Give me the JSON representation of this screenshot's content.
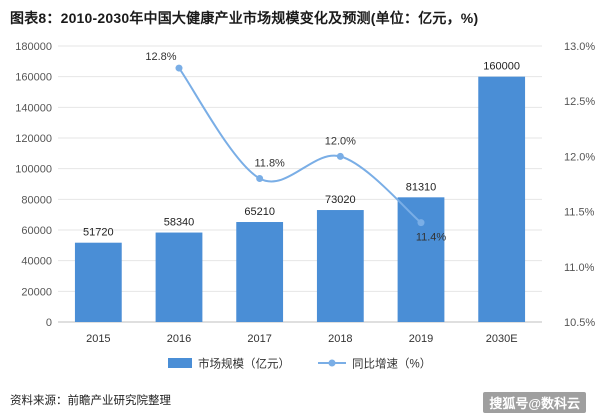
{
  "title": "图表8：2010-2030年中国大健康产业市场规模变化及预测(单位：亿元，%)",
  "source": "资料来源：前瞻产业研究院整理",
  "watermark": "搜狐号@数科云",
  "colors": {
    "bar": "#4a8ed6",
    "line": "#7aaee6",
    "grid": "#e6e6e6",
    "axis": "#bfbfbf"
  },
  "chart_data": {
    "type": "bar",
    "categories": [
      "2015",
      "2016",
      "2017",
      "2018",
      "2019",
      "2030E"
    ],
    "series": [
      {
        "name": "市场规模（亿元）",
        "type": "bar",
        "axis": "left",
        "values": [
          51720,
          58340,
          65210,
          73020,
          81310,
          160000
        ],
        "labels": [
          "51720",
          "58340",
          "65210",
          "73020",
          "81310",
          "160000"
        ]
      },
      {
        "name": "同比增速（%）",
        "type": "line",
        "axis": "right",
        "x": [
          "2016",
          "2017",
          "2018",
          "2019"
        ],
        "values": [
          12.8,
          11.8,
          12.0,
          11.4
        ],
        "labels": [
          "12.8%",
          "11.8%",
          "12.0%",
          "11.4%"
        ]
      }
    ],
    "y_left": {
      "min": 0,
      "max": 180000,
      "step": 20000,
      "ticks": [
        "0",
        "20000",
        "40000",
        "60000",
        "80000",
        "100000",
        "120000",
        "140000",
        "160000",
        "180000"
      ]
    },
    "y_right": {
      "min": 10.5,
      "max": 13.0,
      "step": 0.5,
      "ticks": [
        "10.5%",
        "11.0%",
        "11.5%",
        "12.0%",
        "12.5%",
        "13.0%"
      ]
    },
    "grid": true,
    "legend_position": "bottom"
  }
}
